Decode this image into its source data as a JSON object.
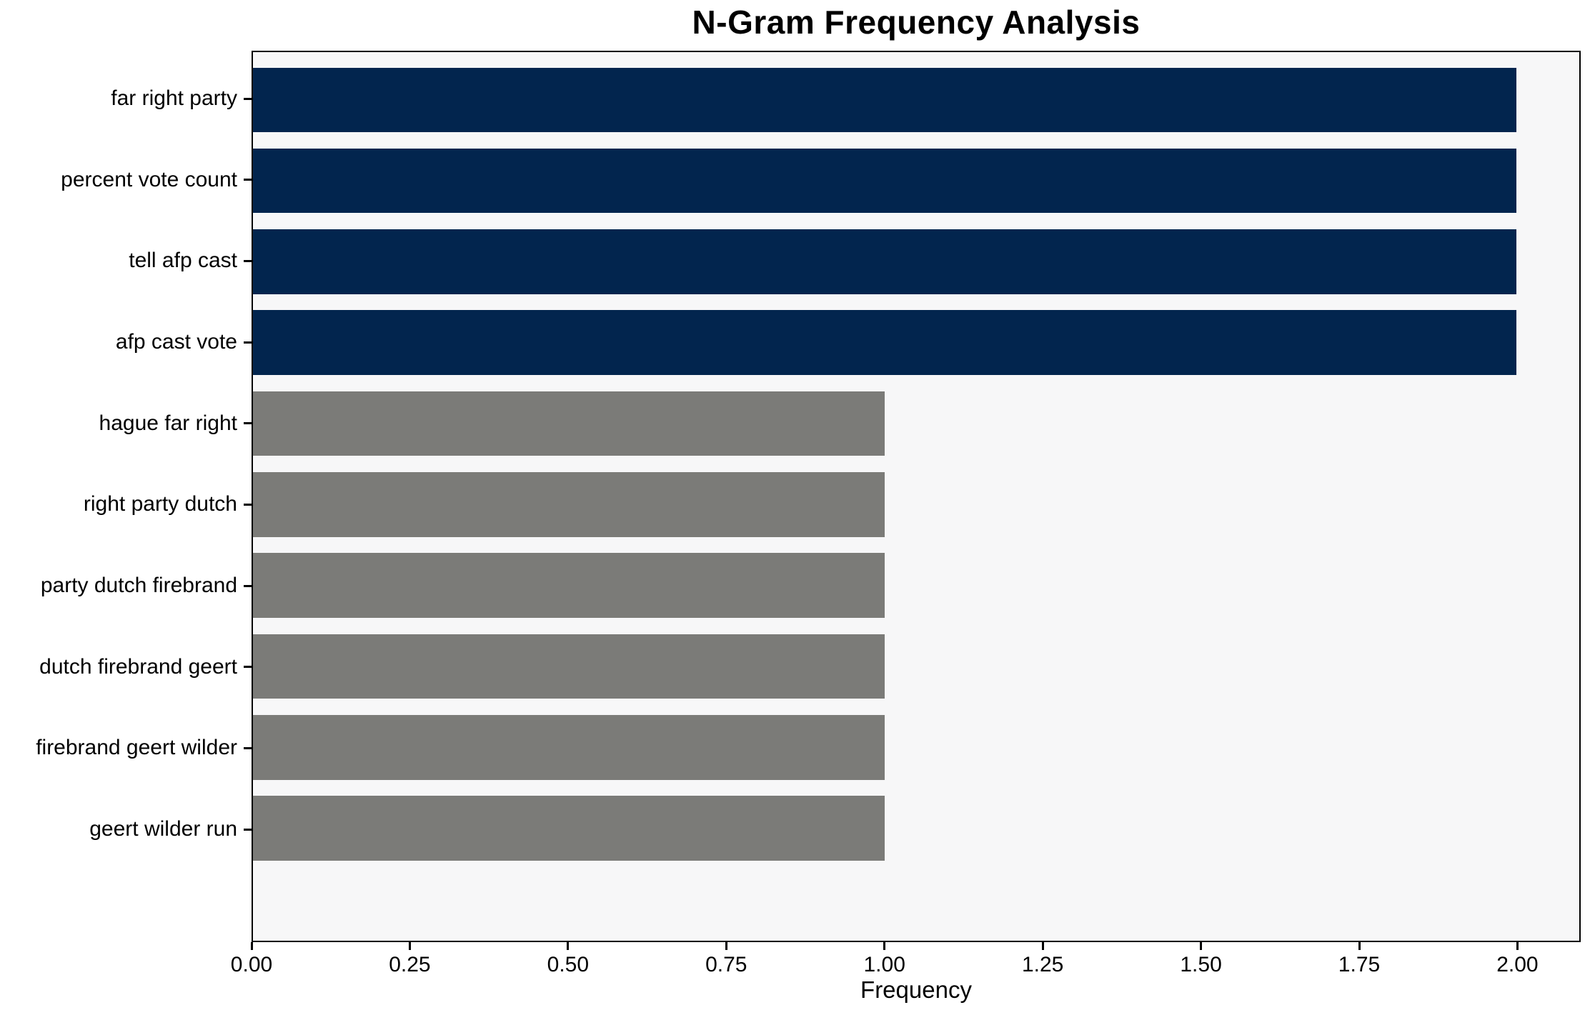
{
  "chart_data": {
    "type": "bar",
    "orientation": "horizontal",
    "title": "N-Gram Frequency Analysis",
    "xlabel": "Frequency",
    "ylabel": "",
    "categories": [
      "far right party",
      "percent vote count",
      "tell afp cast",
      "afp cast vote",
      "hague far right",
      "right party dutch",
      "party dutch firebrand",
      "dutch firebrand geert",
      "firebrand geert wilder",
      "geert wilder run"
    ],
    "values": [
      2,
      2,
      2,
      2,
      1,
      1,
      1,
      1,
      1,
      1
    ],
    "bar_colors": [
      "#02254e",
      "#02254e",
      "#02254e",
      "#02254e",
      "#7b7b78",
      "#7b7b78",
      "#7b7b78",
      "#7b7b78",
      "#7b7b78",
      "#7b7b78"
    ],
    "xlim": [
      0,
      2.1
    ],
    "x_tick_values": [
      0,
      0.25,
      0.5,
      0.75,
      1.0,
      1.25,
      1.5,
      1.75,
      2.0
    ],
    "x_tick_labels": [
      "0.00",
      "0.25",
      "0.50",
      "0.75",
      "1.00",
      "1.25",
      "1.50",
      "1.75",
      "2.00"
    ],
    "bar_thickness_fraction": 0.8,
    "grid": false,
    "legend_position": "none",
    "plot_background": "#f7f7f8",
    "figure_background": "#ffffff",
    "title_color": "#000000",
    "axis_color": "#000000"
  }
}
